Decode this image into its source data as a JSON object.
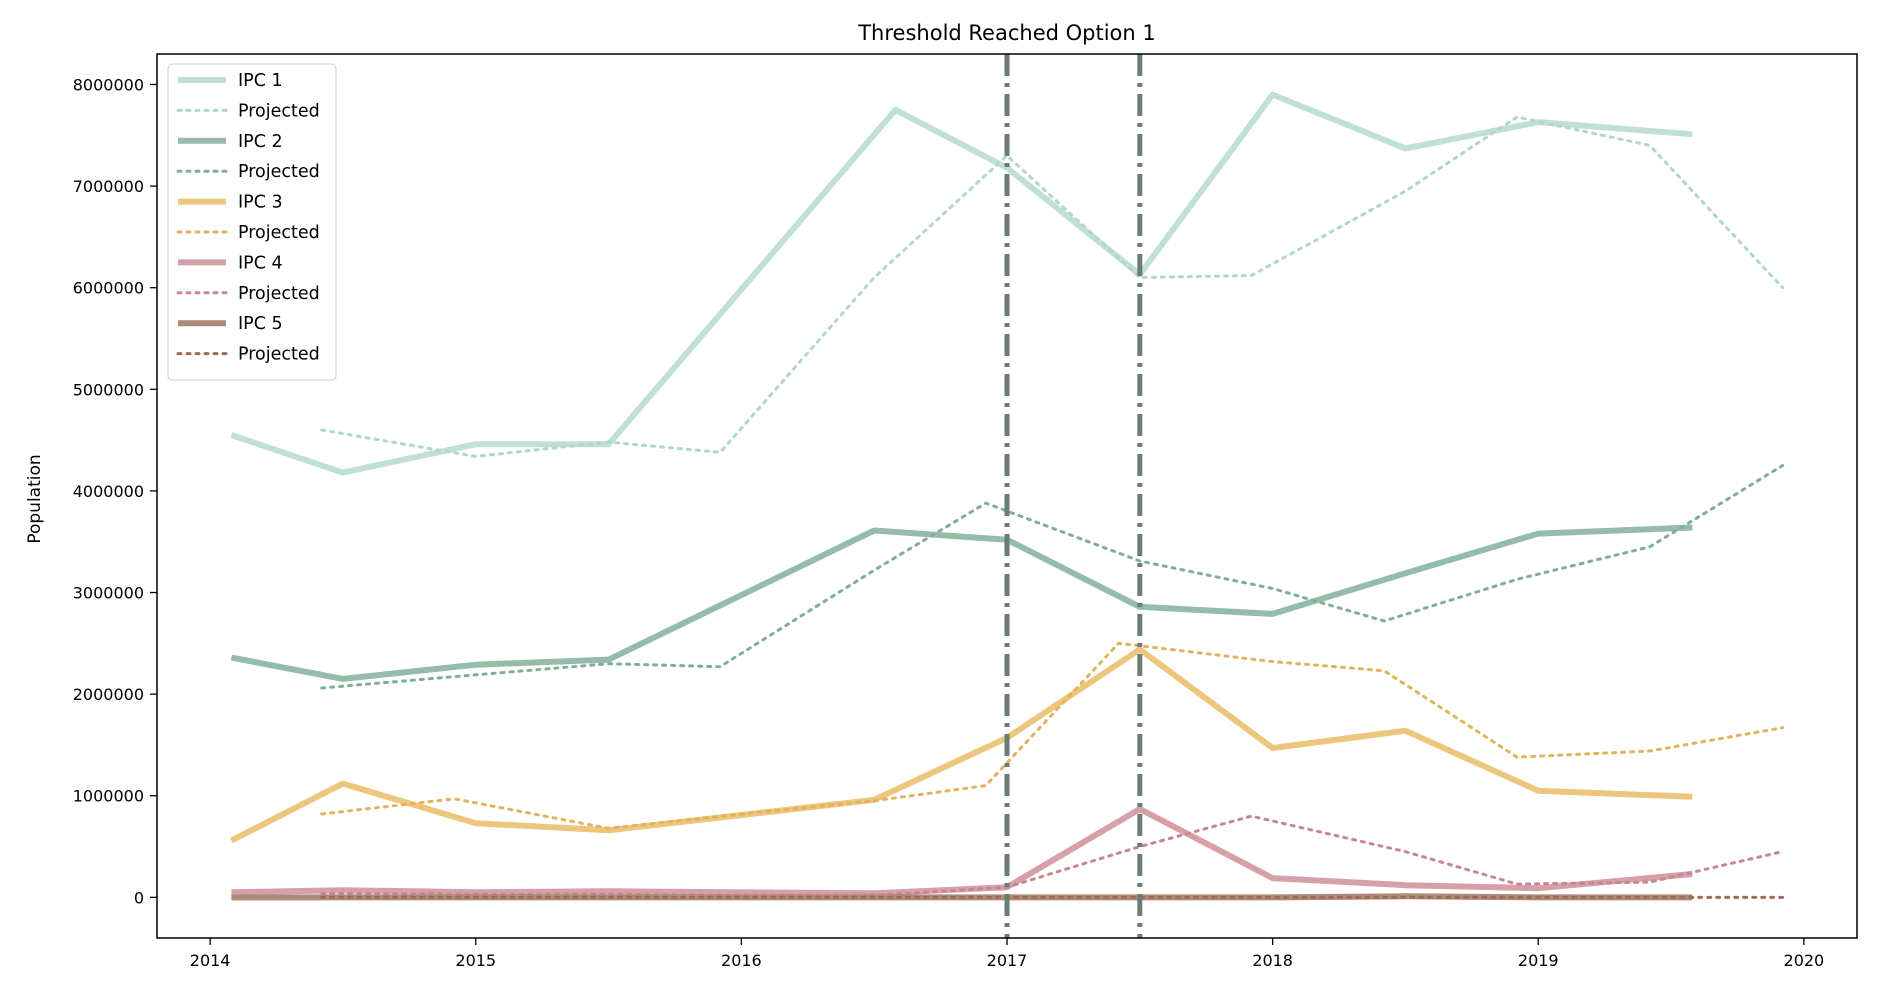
{
  "chart_data": {
    "type": "line",
    "title": "Threshold Reached Option 1",
    "xlabel": "",
    "ylabel": "Population",
    "xlim": [
      2013.8,
      2020.2
    ],
    "ylim": [
      -400000,
      8300000
    ],
    "x_ticks": [
      2014,
      2015,
      2016,
      2017,
      2018,
      2019,
      2020
    ],
    "y_ticks": [
      0,
      1000000,
      2000000,
      3000000,
      4000000,
      5000000,
      6000000,
      7000000,
      8000000
    ],
    "grid": false,
    "legend_position": "top-left",
    "vertical_lines": [
      2017.0,
      2017.5
    ],
    "series": [
      {
        "name": "IPC 1",
        "kind": "actual",
        "color": "#c1e0d4",
        "x": [
          2014.08,
          2014.5,
          2015.0,
          2015.5,
          2016.58,
          2017.0,
          2017.5,
          2018.0,
          2018.5,
          2019.0,
          2019.58
        ],
        "y": [
          4550000,
          4180000,
          4460000,
          4460000,
          7750000,
          7180000,
          6130000,
          7900000,
          7370000,
          7630000,
          7510000
        ]
      },
      {
        "name": "Projected",
        "kind": "projected",
        "color": "#b0d8c8",
        "x": [
          2014.42,
          2015.0,
          2015.5,
          2015.92,
          2016.5,
          2017.0,
          2017.5,
          2017.92,
          2018.5,
          2018.92,
          2019.42,
          2019.92
        ],
        "y": [
          4600000,
          4340000,
          4480000,
          4380000,
          6100000,
          7300000,
          6100000,
          6120000,
          6950000,
          7680000,
          7400000,
          6000000
        ]
      },
      {
        "name": "IPC 2",
        "kind": "actual",
        "color": "#94bca9",
        "x": [
          2014.08,
          2014.5,
          2015.0,
          2015.5,
          2016.5,
          2017.0,
          2017.5,
          2018.0,
          2018.5,
          2019.0,
          2019.58
        ],
        "y": [
          2360000,
          2150000,
          2290000,
          2340000,
          3610000,
          3520000,
          2860000,
          2790000,
          3190000,
          3580000,
          3640000
        ]
      },
      {
        "name": "Projected",
        "kind": "projected",
        "color": "#7fae98",
        "x": [
          2014.42,
          2015.0,
          2015.5,
          2015.92,
          2016.5,
          2016.92,
          2017.5,
          2018.0,
          2018.42,
          2018.92,
          2019.42,
          2019.92
        ],
        "y": [
          2060000,
          2190000,
          2300000,
          2270000,
          3220000,
          3880000,
          3310000,
          3040000,
          2720000,
          3130000,
          3450000,
          4250000
        ]
      },
      {
        "name": "IPC 3",
        "kind": "actual",
        "color": "#ebc67c",
        "x": [
          2014.08,
          2014.5,
          2015.0,
          2015.5,
          2016.5,
          2017.0,
          2017.5,
          2018.0,
          2018.5,
          2019.0,
          2019.58
        ],
        "y": [
          560000,
          1120000,
          730000,
          660000,
          960000,
          1570000,
          2440000,
          1470000,
          1640000,
          1050000,
          990000
        ]
      },
      {
        "name": "Projected",
        "kind": "projected",
        "color": "#e2b35f",
        "x": [
          2014.42,
          2014.92,
          2015.5,
          2016.0,
          2016.5,
          2016.92,
          2017.42,
          2018.0,
          2018.42,
          2018.92,
          2019.42,
          2019.92
        ],
        "y": [
          820000,
          970000,
          680000,
          820000,
          950000,
          1100000,
          2500000,
          2320000,
          2230000,
          1380000,
          1440000,
          1670000
        ]
      },
      {
        "name": "IPC 4",
        "kind": "actual",
        "color": "#d5a0a8",
        "x": [
          2014.08,
          2014.5,
          2015.0,
          2015.5,
          2016.5,
          2017.0,
          2017.5,
          2018.0,
          2018.5,
          2019.0,
          2019.58
        ],
        "y": [
          50000,
          70000,
          50000,
          60000,
          40000,
          100000,
          870000,
          190000,
          120000,
          90000,
          230000
        ]
      },
      {
        "name": "Projected",
        "kind": "projected",
        "color": "#c88592",
        "x": [
          2014.42,
          2015.0,
          2015.5,
          2016.0,
          2016.5,
          2017.0,
          2017.5,
          2017.92,
          2018.5,
          2018.92,
          2019.42,
          2019.92
        ],
        "y": [
          40000,
          30000,
          30000,
          20000,
          20000,
          100000,
          500000,
          800000,
          450000,
          130000,
          150000,
          450000
        ]
      },
      {
        "name": "IPC 5",
        "kind": "actual",
        "color": "#ad8b78",
        "x": [
          2014.08,
          2014.5,
          2015.0,
          2015.5,
          2016.5,
          2017.0,
          2017.5,
          2018.0,
          2018.5,
          2019.0,
          2019.58
        ],
        "y": [
          0,
          0,
          0,
          0,
          0,
          0,
          0,
          0,
          10000,
          0,
          0
        ]
      },
      {
        "name": "Projected",
        "kind": "projected",
        "color": "#a16a58",
        "x": [
          2014.42,
          2015.0,
          2015.5,
          2016.0,
          2016.5,
          2017.0,
          2017.5,
          2018.0,
          2018.5,
          2019.0,
          2019.5,
          2019.92
        ],
        "y": [
          0,
          0,
          0,
          0,
          0,
          0,
          0,
          0,
          0,
          0,
          0,
          0
        ]
      }
    ]
  }
}
